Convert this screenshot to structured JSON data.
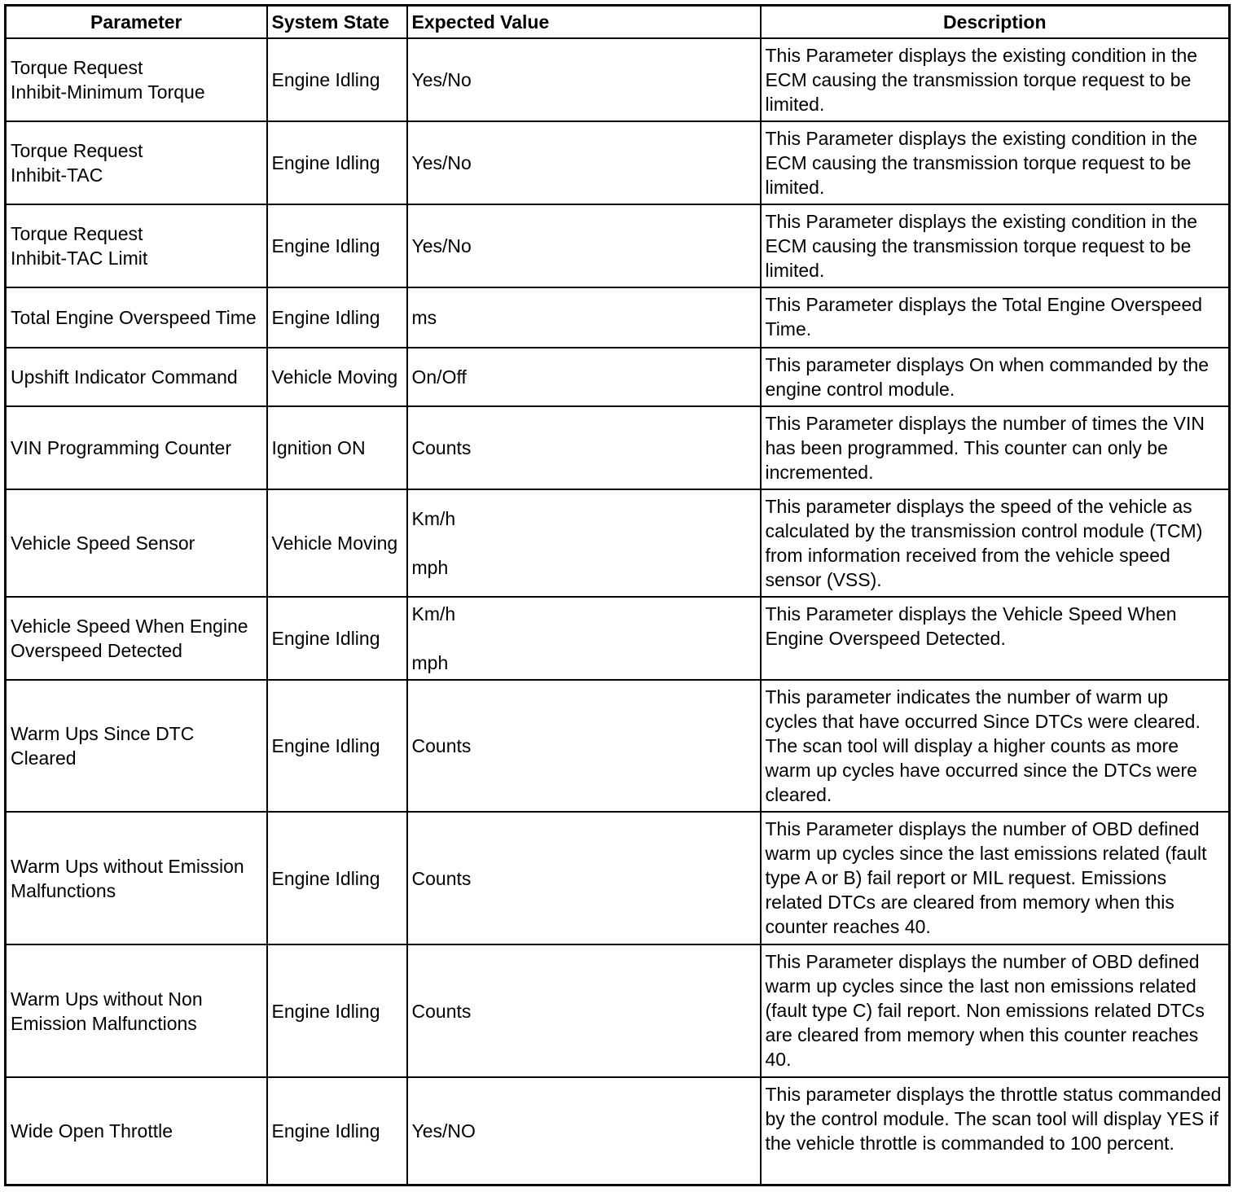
{
  "headers": {
    "parameter": "Parameter",
    "system_state": "System State",
    "expected_value": "Expected Value",
    "description": "Description"
  },
  "rows": [
    {
      "parameter": "Torque Request\nInhibit-Minimum Torque",
      "system_state": "Engine Idling",
      "expected_value": "Yes/No",
      "description": "This Parameter displays the existing condition in the ECM causing the transmission torque request to be limited."
    },
    {
      "parameter": "Torque Request\nInhibit-TAC",
      "system_state": "Engine Idling",
      "expected_value": "Yes/No",
      "description": "This Parameter displays the existing condition in the ECM causing the transmission torque request to be limited."
    },
    {
      "parameter": "Torque Request\nInhibit-TAC Limit",
      "system_state": "Engine Idling",
      "expected_value": "Yes/No",
      "description": "This Parameter displays the existing condition in the ECM causing the transmission torque request to be limited."
    },
    {
      "parameter": "Total Engine Overspeed Time",
      "system_state": "Engine Idling",
      "expected_value": "ms",
      "description": "This Parameter displays the Total Engine Overspeed Time."
    },
    {
      "parameter": "Upshift Indicator Command",
      "system_state": "Vehicle Moving",
      "expected_value": "On/Off",
      "description": "This parameter displays On when commanded by the engine control module."
    },
    {
      "parameter": "VIN Programming Counter",
      "system_state": "Ignition ON",
      "expected_value": "Counts",
      "description": "This Parameter displays the number of times the VIN has been programmed. This counter can only be incremented."
    },
    {
      "parameter": "Vehicle Speed Sensor",
      "system_state": "Vehicle Moving",
      "expected_value": "Km/h\n\nmph",
      "description": "This parameter displays the speed of the vehicle as calculated by the transmission control module (TCM) from information received from the vehicle speed sensor (VSS)."
    },
    {
      "parameter": "Vehicle Speed When Engine Overspeed Detected",
      "system_state": "Engine Idling",
      "expected_value": "Km/h\n\nmph",
      "description": "This Parameter displays the Vehicle Speed When Engine Overspeed Detected."
    },
    {
      "parameter": "Warm Ups Since DTC Cleared",
      "system_state": "Engine Idling",
      "expected_value": "Counts",
      "description": "This parameter indicates the number of warm up cycles that have occurred Since DTCs were cleared. The scan tool will display a higher counts as more warm up cycles have occurred since the DTCs were cleared."
    },
    {
      "parameter": "Warm Ups without Emission Malfunctions",
      "system_state": "Engine Idling",
      "expected_value": "Counts",
      "description": "This Parameter displays the number of OBD defined warm up cycles since the last emissions related (fault type A or B) fail report or MIL request. Emissions related DTCs are cleared from memory when this counter reaches 40."
    },
    {
      "parameter": "Warm Ups without Non Emission Malfunctions",
      "system_state": "Engine Idling",
      "expected_value": "Counts",
      "description": "This Parameter displays the number of OBD defined warm up cycles since the last non emissions related (fault type C) fail report. Non emissions related DTCs are cleared from memory when this counter reaches 40."
    },
    {
      "parameter": "Wide Open Throttle",
      "system_state": "Engine Idling",
      "expected_value": "Yes/NO",
      "description": "This parameter displays the throttle status commanded by the control module. The scan tool will display YES if the vehicle throttle is commanded to 100 percent."
    }
  ]
}
